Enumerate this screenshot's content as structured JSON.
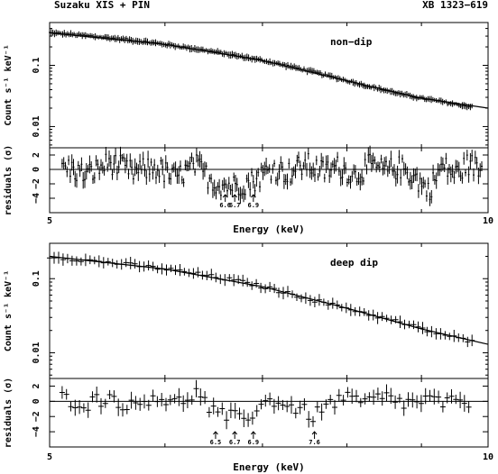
{
  "header": {
    "left": "Suzaku XIS + PIN",
    "right": "XB 1323−619"
  },
  "colors": {
    "ink": "#000000",
    "background": "#ffffff"
  },
  "chart_data": [
    {
      "id": "nondip",
      "type": "line",
      "panel_label": "non−dip",
      "scale": "log-log",
      "xlim": [
        5,
        10
      ],
      "x_ticks": [
        "5",
        "10"
      ],
      "show_x_tick_labels": false,
      "ylabel": "Count s⁻¹ keV⁻¹",
      "ylim": [
        0.0045,
        0.5
      ],
      "y_ticks": [
        {
          "label": "0.1",
          "value": 0.1
        },
        {
          "label": "0.01",
          "value": 0.01
        }
      ],
      "series": [
        {
          "style": "data-with-errorbars",
          "x": [
            5.0,
            5.25,
            5.5,
            5.75,
            6.0,
            6.25,
            6.5,
            6.75,
            7.0,
            7.25,
            7.5,
            7.75,
            8.0,
            8.25,
            8.5,
            8.75,
            9.0,
            9.25,
            9.5,
            9.75
          ],
          "y": [
            0.34,
            0.31,
            0.28,
            0.25,
            0.22,
            0.19,
            0.165,
            0.14,
            0.12,
            0.1,
            0.083,
            0.068,
            0.056,
            0.046,
            0.039,
            0.033,
            0.029,
            0.026,
            0.023,
            0.021
          ]
        },
        {
          "style": "model-line",
          "x": [
            5.0,
            6.0,
            7.0,
            8.0,
            9.0,
            10.0
          ],
          "y": [
            0.34,
            0.22,
            0.12,
            0.056,
            0.029,
            0.02
          ]
        }
      ]
    },
    {
      "id": "nondip_residuals",
      "type": "line",
      "scale": "log-x",
      "xlabel": "Energy (keV)",
      "xlim": [
        5,
        10
      ],
      "x_ticks": [
        "5",
        "10"
      ],
      "ylabel": "residuals (σ)",
      "ylim": [
        -6,
        3
      ],
      "y_ticks": [
        {
          "label": "2",
          "value": 2
        },
        {
          "label": "0",
          "value": 0
        },
        {
          "label": "−2",
          "value": -2
        },
        {
          "label": "−4",
          "value": -4
        }
      ],
      "zero_line": true,
      "series": [
        {
          "style": "residuals-with-errorbars",
          "x": [
            5.1,
            5.3,
            5.5,
            5.7,
            5.9,
            6.1,
            6.3,
            6.5,
            6.7,
            6.9,
            7.1,
            7.3,
            7.5,
            7.7,
            7.9,
            8.1,
            8.3,
            8.5,
            8.7,
            8.9,
            9.1,
            9.3,
            9.5,
            9.7,
            9.9
          ],
          "y": [
            0.5,
            -0.8,
            1.0,
            -0.4,
            0.3,
            -1.2,
            0.6,
            -2.0,
            -2.3,
            -1.6,
            0.2,
            -0.5,
            0.8,
            -0.3,
            0.4,
            -0.9,
            0.6,
            -0.2,
            0.3,
            -1.0,
            -3.0,
            0.5,
            -0.7,
            0.8,
            -0.1
          ]
        }
      ],
      "annotations": [
        {
          "label": "6.6",
          "x": 6.6
        },
        {
          "label": "6.7",
          "x": 6.7
        },
        {
          "label": "6.9",
          "x": 6.9
        }
      ]
    },
    {
      "id": "deepdip",
      "type": "line",
      "panel_label": "deep dip",
      "scale": "log-log",
      "xlim": [
        5,
        10
      ],
      "x_ticks": [
        "5",
        "10"
      ],
      "show_x_tick_labels": false,
      "ylabel": "Count s⁻¹ keV⁻¹",
      "ylim": [
        0.0045,
        0.3
      ],
      "y_ticks": [
        {
          "label": "0.1",
          "value": 0.1
        },
        {
          "label": "0.01",
          "value": 0.01
        }
      ],
      "series": [
        {
          "style": "data-with-errorbars",
          "x": [
            5.0,
            5.25,
            5.5,
            5.75,
            6.0,
            6.25,
            6.5,
            6.75,
            7.0,
            7.25,
            7.5,
            7.75,
            8.0,
            8.25,
            8.5,
            8.75,
            9.0,
            9.25,
            9.5,
            9.75
          ],
          "y": [
            0.2,
            0.18,
            0.165,
            0.15,
            0.135,
            0.12,
            0.105,
            0.092,
            0.078,
            0.065,
            0.055,
            0.046,
            0.04,
            0.034,
            0.029,
            0.025,
            0.021,
            0.018,
            0.016,
            0.014
          ]
        },
        {
          "style": "model-line",
          "x": [
            5.0,
            6.0,
            7.0,
            8.0,
            9.0,
            10.0
          ],
          "y": [
            0.2,
            0.135,
            0.078,
            0.04,
            0.021,
            0.013
          ]
        }
      ]
    },
    {
      "id": "deepdip_residuals",
      "type": "line",
      "scale": "log-x",
      "xlabel": "Energy (keV)",
      "xlim": [
        5,
        10
      ],
      "x_ticks": [
        "5",
        "10"
      ],
      "ylabel": "residuals (σ)",
      "ylim": [
        -6,
        3
      ],
      "y_ticks": [
        {
          "label": "2",
          "value": 2
        },
        {
          "label": "0",
          "value": 0
        },
        {
          "label": "−2",
          "value": -2
        },
        {
          "label": "−4",
          "value": -4
        }
      ],
      "zero_line": true,
      "series": [
        {
          "style": "residuals-with-errorbars",
          "x": [
            5.1,
            5.3,
            5.5,
            5.7,
            5.9,
            6.1,
            6.3,
            6.5,
            6.7,
            6.9,
            7.1,
            7.3,
            7.6,
            7.9,
            8.2,
            8.5,
            8.8,
            9.1,
            9.4,
            9.7
          ],
          "y": [
            0.5,
            -0.3,
            0.6,
            -0.8,
            0.9,
            -0.4,
            1.2,
            -1.8,
            -2.2,
            -1.5,
            0.3,
            -0.6,
            -1.9,
            0.4,
            -0.2,
            0.5,
            -0.3,
            0.2,
            -0.4,
            0.1
          ]
        }
      ],
      "annotations": [
        {
          "label": "6.5",
          "x": 6.5
        },
        {
          "label": "6.7",
          "x": 6.7
        },
        {
          "label": "6.9",
          "x": 6.9
        },
        {
          "label": "7.6",
          "x": 7.6
        }
      ]
    }
  ]
}
